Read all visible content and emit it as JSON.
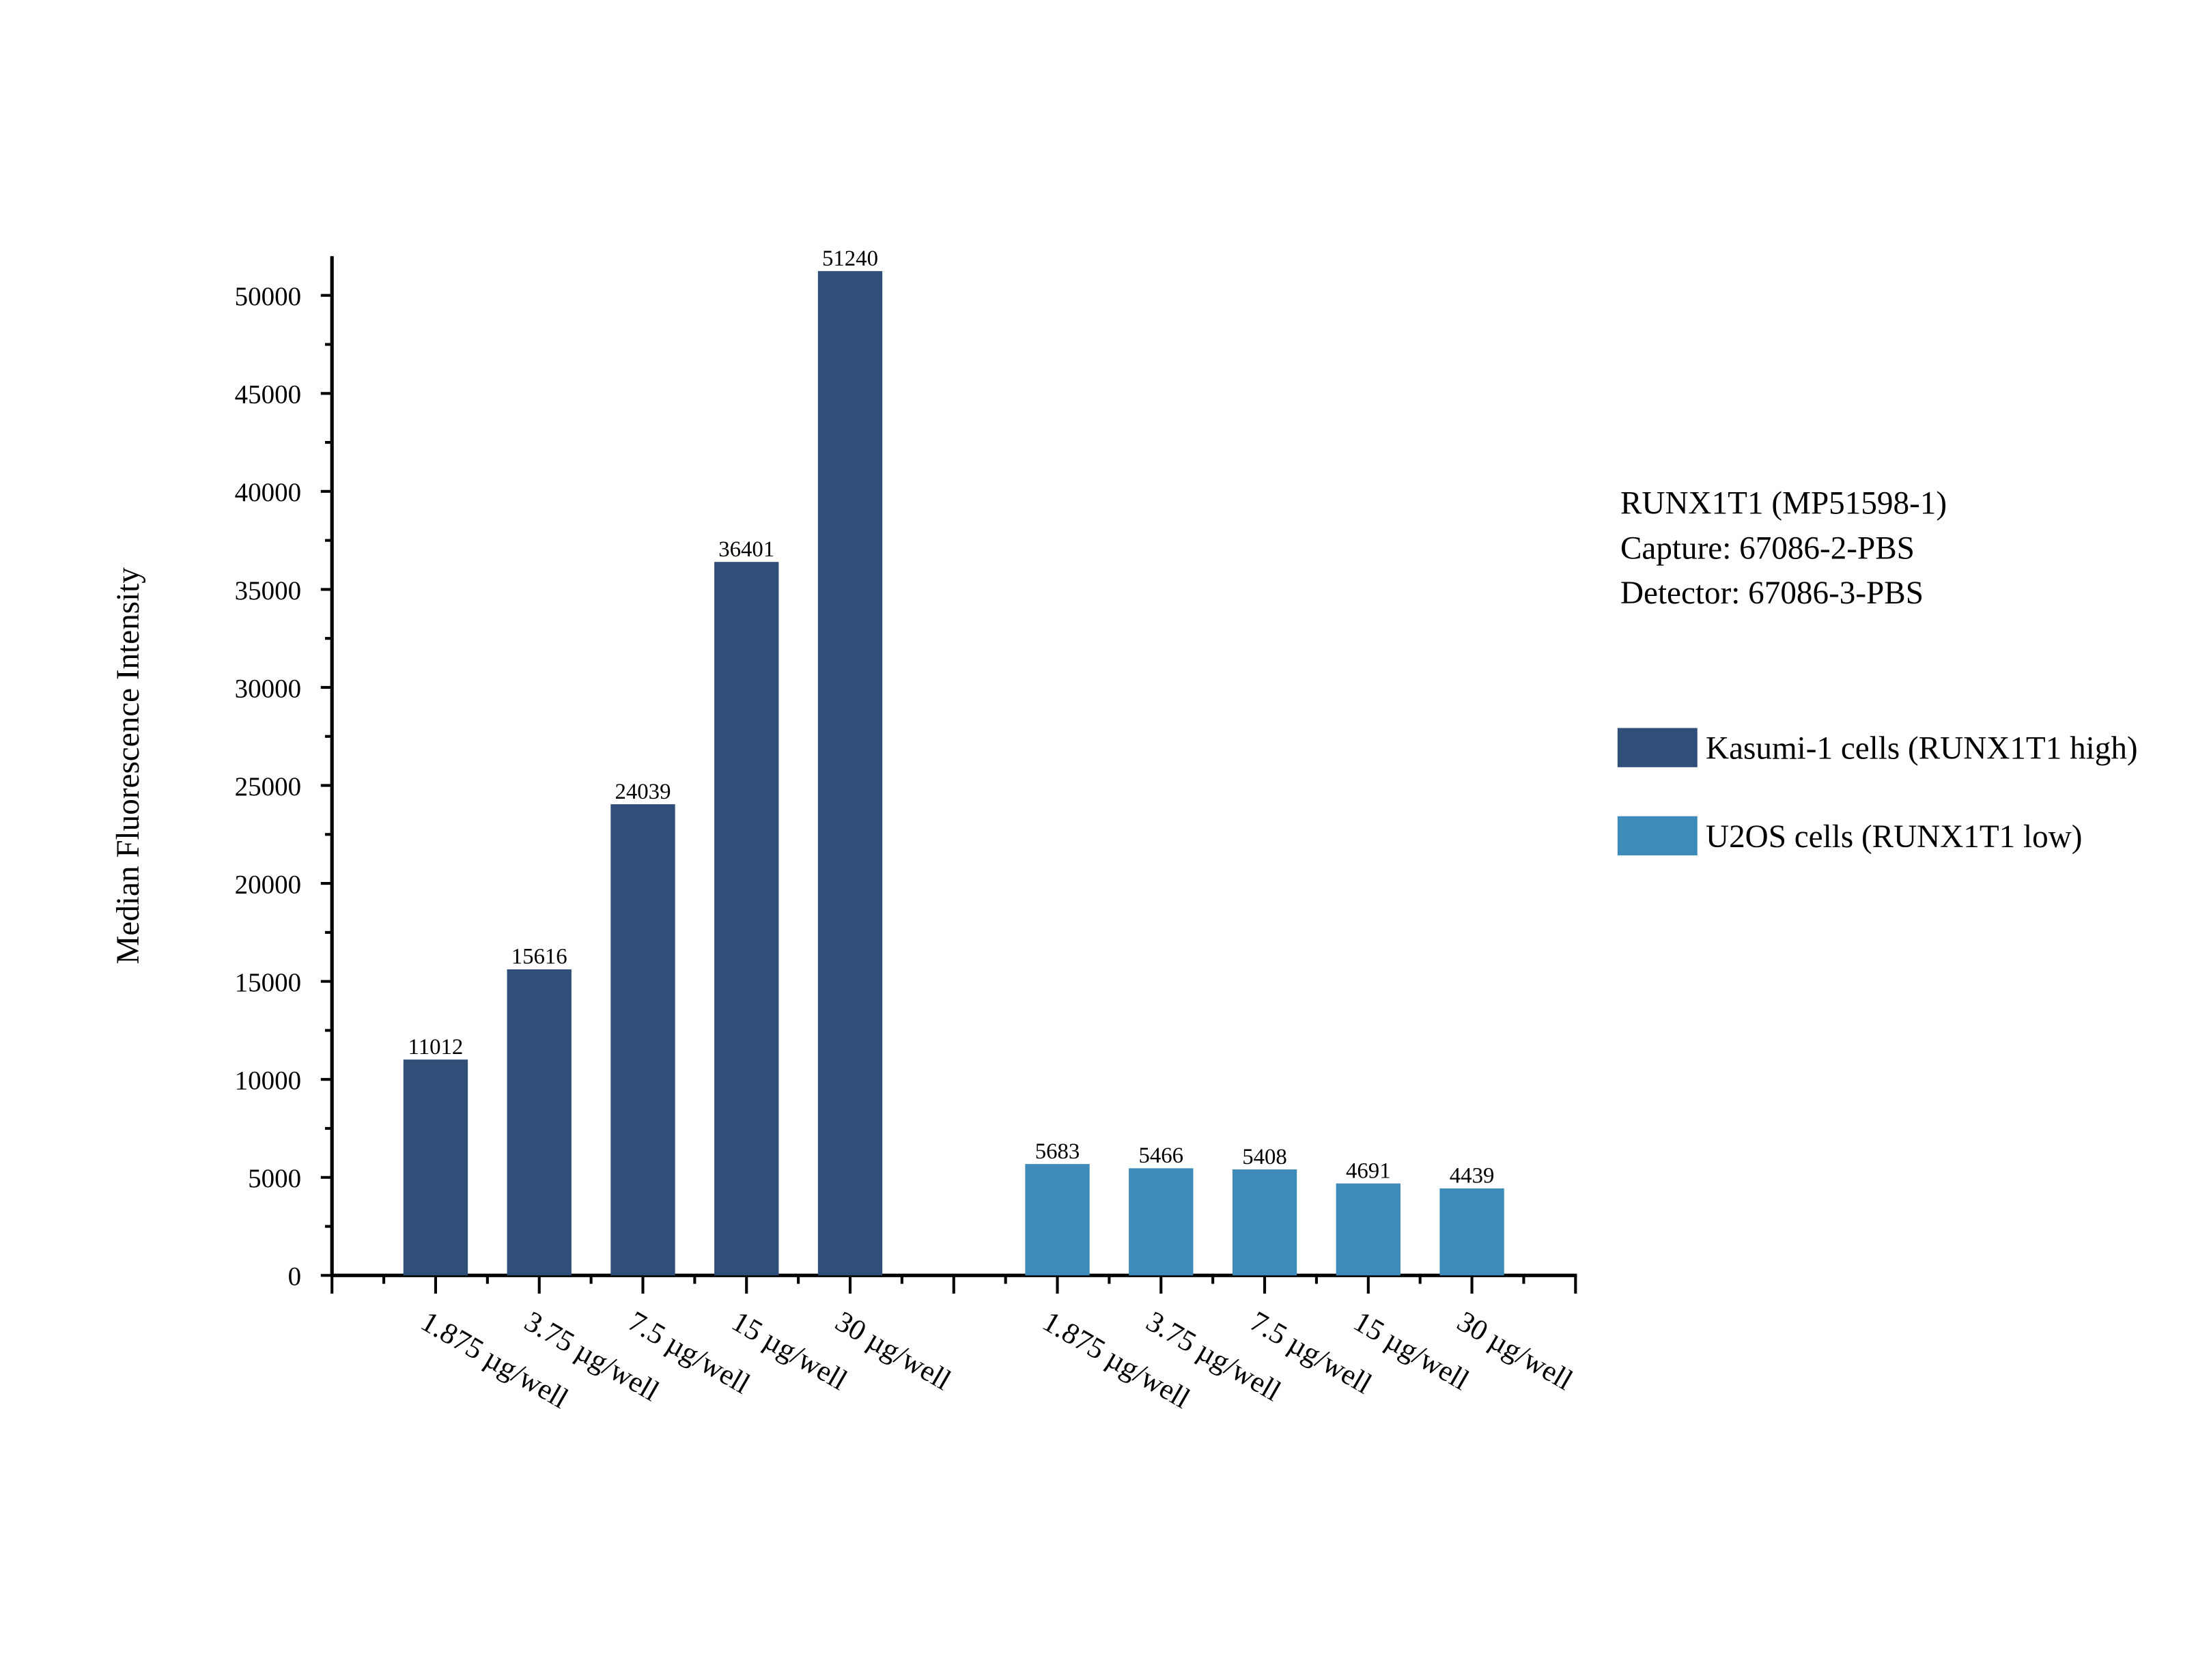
{
  "chart_data": {
    "type": "bar",
    "title_lines": [
      "RUNX1T1 (MP51598-1)",
      "Capture: 67086-2-PBS",
      "Detector: 67086-3-PBS"
    ],
    "xlabel": "",
    "ylabel": "Median Fluorescence Intensity",
    "ylim": [
      0,
      52000
    ],
    "yticks": [
      0,
      5000,
      10000,
      15000,
      20000,
      25000,
      30000,
      35000,
      40000,
      45000,
      50000
    ],
    "grid": false,
    "legend_position": "right",
    "categories": [
      "1.875 µg/well",
      "3.75 µg/well",
      "7.5 µg/well",
      "15 µg/well",
      "30 µg/well"
    ],
    "series": [
      {
        "name": "Kasumi-1 cells (RUNX1T1 high)",
        "color": "#2f4f79",
        "values": [
          11012,
          15616,
          24039,
          36401,
          51240
        ]
      },
      {
        "name": "U2OS cells (RUNX1T1 low)",
        "color": "#3e8ab8",
        "values": [
          5683,
          5466,
          5408,
          4691,
          4439
        ]
      }
    ]
  }
}
